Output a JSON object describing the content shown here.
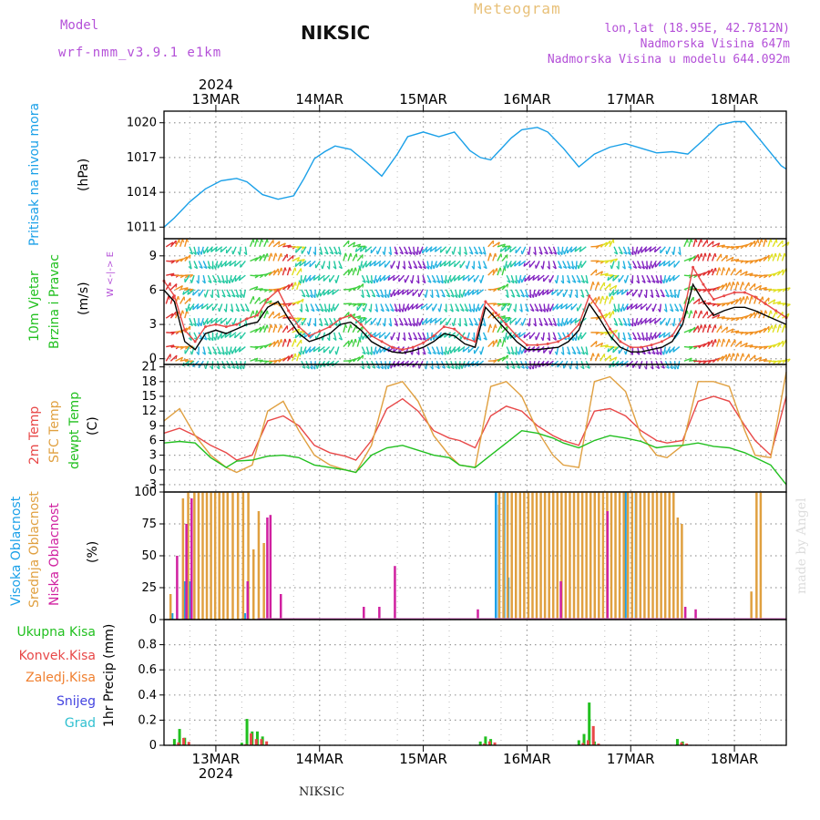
{
  "header": {
    "model_label": "Model",
    "model_name": "wrf-nmm_v3.9.1 e1km",
    "station": "NIKSIC",
    "product": "Meteogram",
    "coords": "lon,lat (18.95E, 42.7812N)",
    "elevation": "Nadmorska Visina 647m",
    "model_elevation": "Nadmorska Visina u modelu 644.092m",
    "year_top": "2024",
    "year_bottom": "2024",
    "footer_station": "NIKSIC",
    "watermark": "made by Angel"
  },
  "dates": [
    "13MAR",
    "14MAR",
    "15MAR",
    "16MAR",
    "17MAR",
    "18MAR"
  ],
  "panels": {
    "pressure": {
      "label": "Pritisak na nivou mora",
      "unit": "(hPa)",
      "color": "#1aa0e8"
    },
    "wind": {
      "label1": "10m Vjetar",
      "label2": "Brzina i Pravac",
      "unit": "(m/s)",
      "color": "#22c020",
      "compass": "W <-|-> E",
      "compass_n": "N",
      "compass_s": "S"
    },
    "temp": {
      "label1": "2m Temp",
      "label2": "SFC Temp",
      "label3": "dewpt Temp",
      "unit": "(C)",
      "c1": "#e84848",
      "c2": "#e0a040",
      "c3": "#22c020"
    },
    "cloud": {
      "label1": "Visoka Oblacnost",
      "label2": "Srednja Oblacnost",
      "label3": "Niska Oblacnost",
      "unit": "(%)",
      "c1": "#1aa0e8",
      "c2": "#e0a040",
      "c3": "#d020a0"
    },
    "precip": {
      "legend": [
        "Ukupna Kisa",
        "Konvek.Kisa",
        "Zaledj.Kisa",
        "Snijeg",
        "Grad"
      ],
      "legend_colors": [
        "#22c020",
        "#e84848",
        "#f08030",
        "#4444e0",
        "#30c0d0"
      ],
      "axis_label": "1hr Precip (mm)"
    }
  },
  "chart_data": [
    {
      "type": "line",
      "title": "",
      "ylabel": "(hPa)",
      "ylim": [
        1010,
        1021
      ],
      "yticks": [
        1011,
        1014,
        1017,
        1020
      ],
      "series": [
        {
          "name": "Pritisak na nivou mora",
          "color": "#1aa0e8",
          "x": [
            12.5,
            12.6,
            12.75,
            12.9,
            13.05,
            13.2,
            13.3,
            13.45,
            13.6,
            13.75,
            13.85,
            13.95,
            14.05,
            14.15,
            14.3,
            14.45,
            14.6,
            14.75,
            14.85,
            15.0,
            15.15,
            15.3,
            15.45,
            15.55,
            15.65,
            15.85,
            15.95,
            16.1,
            16.2,
            16.35,
            16.5,
            16.65,
            16.8,
            16.95,
            17.1,
            17.25,
            17.4,
            17.55,
            17.7,
            17.85,
            18.0,
            18.1,
            18.25,
            18.35,
            18.45,
            18.5
          ],
          "y": [
            1011,
            1011.8,
            1013.2,
            1014.3,
            1015,
            1015.2,
            1014.9,
            1013.8,
            1013.4,
            1013.7,
            1015.2,
            1016.9,
            1017.5,
            1018,
            1017.7,
            1016.6,
            1015.4,
            1017.3,
            1018.8,
            1019.2,
            1018.8,
            1019.2,
            1017.6,
            1017,
            1016.8,
            1018.7,
            1019.4,
            1019.6,
            1019.2,
            1017.8,
            1016.2,
            1017.3,
            1017.9,
            1018.2,
            1017.8,
            1017.4,
            1017.5,
            1017.3,
            1018.5,
            1019.8,
            1020.1,
            1020.1,
            1018.5,
            1017.4,
            1016.3,
            1016
          ]
        }
      ]
    },
    {
      "type": "line",
      "title": "",
      "ylabel": "(m/s)",
      "ylim": [
        -0.5,
        10.5
      ],
      "yticks": [
        0,
        3,
        6,
        9
      ],
      "series": [
        {
          "name": "",
          "color": "#000000",
          "x": [
            12.5,
            12.6,
            12.7,
            12.8,
            12.9,
            13.0,
            13.1,
            13.2,
            13.3,
            13.4,
            13.5,
            13.6,
            13.7,
            13.8,
            13.9,
            14.0,
            14.1,
            14.2,
            14.3,
            14.4,
            14.5,
            14.6,
            14.7,
            14.8,
            14.9,
            15.0,
            15.1,
            15.2,
            15.3,
            15.4,
            15.5,
            15.6,
            15.7,
            15.8,
            15.9,
            16.0,
            16.1,
            16.2,
            16.3,
            16.4,
            16.5,
            16.6,
            16.7,
            16.8,
            16.9,
            17.0,
            17.1,
            17.2,
            17.3,
            17.4,
            17.5,
            17.6,
            17.7,
            17.8,
            17.9,
            18.0,
            18.1,
            18.2,
            18.3,
            18.4,
            18.5
          ],
          "y": [
            6,
            5,
            1.5,
            0.8,
            2.2,
            2.5,
            2.2,
            2.6,
            3,
            3.2,
            4.5,
            5,
            3.5,
            2.2,
            1.5,
            1.8,
            2.2,
            3,
            3.2,
            2.5,
            1.5,
            1,
            0.6,
            0.5,
            0.7,
            1,
            1.5,
            2.2,
            2,
            1.3,
            1,
            4.5,
            3.5,
            2.5,
            1.5,
            0.8,
            0.8,
            0.9,
            1,
            1.5,
            2.5,
            4.8,
            3.5,
            2,
            1,
            0.6,
            0.6,
            0.8,
            1,
            1.5,
            3,
            6.5,
            5,
            3.8,
            4.2,
            4.5,
            4.5,
            4.2,
            3.8,
            3.4,
            3
          ]
        },
        {
          "name": "",
          "color": "#e84848",
          "x": [
            12.5,
            12.6,
            12.7,
            12.8,
            12.9,
            13.0,
            13.1,
            13.2,
            13.3,
            13.4,
            13.5,
            13.6,
            13.7,
            13.8,
            13.9,
            14.0,
            14.1,
            14.2,
            14.3,
            14.4,
            14.5,
            14.6,
            14.7,
            14.8,
            14.9,
            15.0,
            15.1,
            15.2,
            15.3,
            15.4,
            15.5,
            15.6,
            15.7,
            15.8,
            15.9,
            16.0,
            16.1,
            16.2,
            16.3,
            16.4,
            16.5,
            16.6,
            16.7,
            16.8,
            16.9,
            17.0,
            17.1,
            17.2,
            17.3,
            17.4,
            17.5,
            17.6,
            17.7,
            17.8,
            17.9,
            18.0,
            18.1,
            18.2,
            18.3,
            18.4,
            18.5
          ],
          "y": [
            6.8,
            5.5,
            2.5,
            1.5,
            2.8,
            3,
            2.8,
            3,
            3.5,
            3.8,
            5.2,
            6,
            4.2,
            2.8,
            2,
            2.4,
            2.8,
            3.5,
            3.8,
            3,
            2,
            1.5,
            1,
            0.8,
            1,
            1.4,
            2,
            2.8,
            2.6,
            1.8,
            1.5,
            5,
            4,
            3,
            2,
            1.2,
            1.2,
            1.3,
            1.5,
            2,
            3,
            5.5,
            4.2,
            2.6,
            1.5,
            1,
            1,
            1.2,
            1.5,
            2,
            3.5,
            8,
            6.5,
            5.2,
            5.5,
            5.8,
            5.8,
            5.4,
            4.8,
            4.2,
            3.6
          ]
        }
      ],
      "wind_field": "arrows colored by speed"
    },
    {
      "type": "line",
      "title": "",
      "ylabel": "(C)",
      "ylim": [
        -4.5,
        21.5
      ],
      "yticks": [
        -3,
        0,
        3,
        6,
        9,
        12,
        15,
        18,
        21
      ],
      "series": [
        {
          "name": "2m Temp",
          "color": "#e84848",
          "x": [
            12.5,
            12.65,
            12.8,
            12.95,
            13.1,
            13.2,
            13.35,
            13.5,
            13.65,
            13.8,
            13.95,
            14.1,
            14.25,
            14.35,
            14.5,
            14.65,
            14.8,
            14.95,
            15.1,
            15.25,
            15.35,
            15.5,
            15.65,
            15.8,
            15.95,
            16.1,
            16.25,
            16.35,
            16.5,
            16.65,
            16.8,
            16.95,
            17.1,
            17.25,
            17.35,
            17.5,
            17.65,
            17.8,
            17.95,
            18.1,
            18.2,
            18.35,
            18.5
          ],
          "y": [
            7.5,
            8.5,
            7,
            5,
            3.5,
            2,
            3,
            10,
            11,
            9,
            5,
            3.5,
            2.8,
            2,
            6,
            12.5,
            14.5,
            12,
            8,
            6.5,
            6,
            4.5,
            11,
            13,
            12,
            9,
            7,
            6,
            5,
            12,
            12.5,
            11,
            8,
            6,
            5.5,
            6,
            14,
            15,
            14,
            9,
            6,
            3,
            15
          ]
        },
        {
          "name": "SFC Temp",
          "color": "#e0a040",
          "x": [
            12.5,
            12.65,
            12.8,
            12.95,
            13.1,
            13.2,
            13.35,
            13.5,
            13.65,
            13.8,
            13.95,
            14.1,
            14.25,
            14.35,
            14.5,
            14.65,
            14.8,
            14.95,
            15.1,
            15.25,
            15.35,
            15.5,
            15.65,
            15.8,
            15.95,
            16.1,
            16.25,
            16.35,
            16.5,
            16.65,
            16.8,
            16.95,
            17.1,
            17.25,
            17.35,
            17.5,
            17.65,
            17.8,
            17.95,
            18.1,
            18.2,
            18.35,
            18.5
          ],
          "y": [
            10,
            12.5,
            7,
            3,
            0.5,
            -0.5,
            1,
            12,
            14,
            8,
            3,
            1,
            0,
            -0.5,
            5,
            17,
            18,
            14,
            7,
            3,
            1,
            0.5,
            17,
            18,
            15,
            8,
            3,
            1,
            0.5,
            18,
            19,
            16,
            7,
            3,
            2.5,
            5,
            18,
            18,
            17,
            8,
            3,
            2.5,
            20
          ]
        },
        {
          "name": "dewpt Temp",
          "color": "#22c020",
          "x": [
            12.5,
            12.65,
            12.8,
            12.95,
            13.1,
            13.2,
            13.35,
            13.5,
            13.65,
            13.8,
            13.95,
            14.1,
            14.25,
            14.35,
            14.5,
            14.65,
            14.8,
            14.95,
            15.1,
            15.25,
            15.35,
            15.5,
            15.65,
            15.8,
            15.95,
            16.1,
            16.25,
            16.35,
            16.5,
            16.65,
            16.8,
            16.95,
            17.1,
            17.25,
            17.35,
            17.5,
            17.65,
            17.8,
            17.95,
            18.1,
            18.2,
            18.35,
            18.5
          ],
          "y": [
            5.5,
            5.8,
            5.5,
            2.5,
            0.5,
            1.8,
            2,
            2.8,
            3,
            2.5,
            1,
            0.5,
            0,
            -0.5,
            3,
            4.5,
            5,
            4,
            3,
            2.5,
            1,
            0.5,
            3,
            5.5,
            8,
            7.5,
            6.5,
            5.5,
            4.5,
            6,
            7,
            6.5,
            5.8,
            4.5,
            4.8,
            5,
            5.5,
            4.8,
            4.5,
            3.5,
            2.5,
            1,
            -3
          ]
        }
      ]
    },
    {
      "type": "bar",
      "title": "",
      "ylabel": "(%)",
      "ylim": [
        0,
        100
      ],
      "yticks": [
        0,
        25,
        50,
        75,
        100
      ],
      "series": [
        {
          "name": "Visoka Oblacnost",
          "color": "#1aa0e8",
          "x": [
            12.58,
            12.7,
            12.75,
            13.28,
            15.7,
            15.73,
            15.78,
            15.82,
            16.95,
            17.05
          ],
          "values": [
            5,
            30,
            30,
            5,
            100,
            90,
            100,
            33,
            100,
            100
          ]
        },
        {
          "name": "Srednja Oblacnost",
          "color": "#e0a040",
          "x": [
            12.55,
            12.67,
            12.72,
            12.78,
            12.82,
            12.86,
            12.9,
            12.94,
            12.98,
            13.02,
            13.06,
            13.1,
            13.15,
            13.2,
            13.25,
            13.3,
            13.35,
            13.4,
            13.45,
            15.72,
            15.76,
            15.8,
            15.84,
            15.88,
            15.92,
            15.96,
            16.0,
            16.04,
            16.08,
            16.12,
            16.16,
            16.2,
            16.24,
            16.28,
            16.32,
            16.36,
            16.4,
            16.44,
            16.48,
            16.52,
            16.56,
            16.6,
            16.64,
            16.68,
            16.72,
            16.76,
            16.8,
            16.84,
            16.88,
            16.92,
            16.96,
            17.0,
            17.04,
            17.08,
            17.12,
            17.16,
            17.2,
            17.24,
            17.28,
            17.32,
            17.36,
            17.4,
            17.44,
            17.48,
            18.15,
            18.2,
            18.24
          ],
          "values": [
            20,
            95,
            100,
            100,
            100,
            100,
            100,
            100,
            100,
            100,
            100,
            100,
            100,
            100,
            100,
            100,
            55,
            85,
            60,
            100,
            100,
            100,
            100,
            100,
            100,
            100,
            100,
            100,
            100,
            100,
            100,
            100,
            100,
            100,
            100,
            100,
            100,
            100,
            100,
            100,
            100,
            100,
            100,
            100,
            100,
            100,
            100,
            100,
            100,
            100,
            100,
            100,
            100,
            100,
            100,
            100,
            100,
            100,
            100,
            100,
            100,
            100,
            80,
            75,
            22,
            100,
            100
          ]
        },
        {
          "name": "Niska Oblacnost",
          "color": "#d020a0",
          "x": [
            12.6,
            12.69,
            12.74,
            13.28,
            13.47,
            13.5,
            13.6,
            14.4,
            14.55,
            14.7,
            15.5,
            16.3,
            16.75,
            17.5,
            17.6,
            18.3
          ],
          "values": [
            50,
            75,
            95,
            30,
            80,
            82,
            20,
            10,
            10,
            42,
            8,
            30,
            85,
            10,
            8,
            0
          ]
        }
      ]
    },
    {
      "type": "bar",
      "title": "",
      "ylabel": "1hr Precip (mm)",
      "ylim": [
        0,
        1
      ],
      "yticks": [
        0,
        0.2,
        0.4,
        0.6,
        0.8
      ],
      "series": [
        {
          "name": "Ukupna Kisa",
          "color": "#22c020",
          "x": [
            12.6,
            12.65,
            12.7,
            13.25,
            13.3,
            13.35,
            13.4,
            13.45,
            15.55,
            15.6,
            15.65,
            16.5,
            16.55,
            16.6,
            16.65,
            17.45,
            17.5
          ],
          "values": [
            0.05,
            0.13,
            0.06,
            0.02,
            0.21,
            0.11,
            0.11,
            0.07,
            0.03,
            0.07,
            0.05,
            0.04,
            0.09,
            0.34,
            0.03,
            0.05,
            0.03
          ]
        }
      ]
    }
  ]
}
